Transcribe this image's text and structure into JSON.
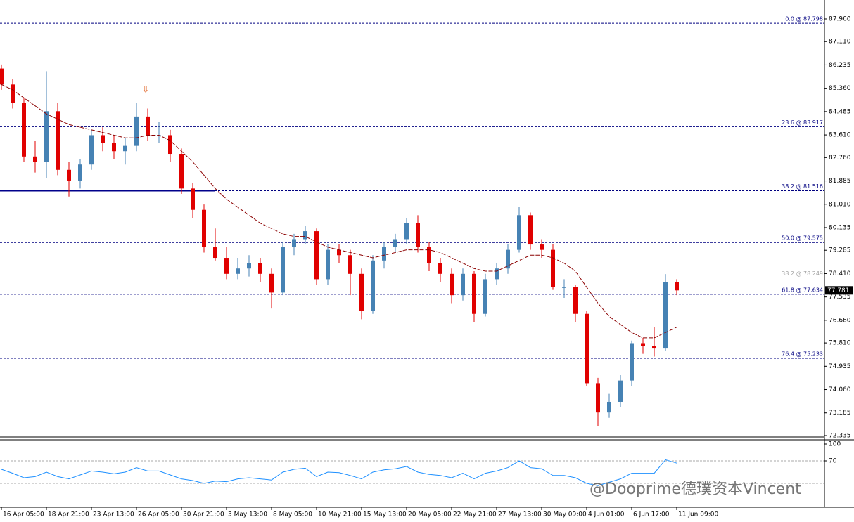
{
  "chart_data": {
    "type": "candlestick",
    "up_color": "#4682b4",
    "down_color": "#e00000",
    "ma_color": "#8b0000",
    "ylim": [
      72.282,
      88.671
    ],
    "yticks": [
      {
        "value": 87.96,
        "label": "87.960"
      },
      {
        "value": 87.11,
        "label": "87.110"
      },
      86.235,
      {
        "value": 85.36,
        "label": "85.360"
      },
      84.485,
      {
        "value": 83.61,
        "label": "83.610"
      },
      {
        "value": 82.76,
        "label": "82.760"
      },
      81.885,
      {
        "value": 81.01,
        "label": "81.010"
      },
      80.135,
      79.285,
      {
        "value": 78.41,
        "label": "78.410"
      },
      77.535,
      {
        "value": 76.66,
        "label": "76.660"
      },
      {
        "value": 75.81,
        "label": "75.810"
      },
      74.935,
      {
        "value": 74.06,
        "label": "74.060"
      },
      73.185,
      72.335
    ],
    "categories": [
      "16 Apr 05:00",
      null,
      null,
      null,
      "18 Apr 21:00",
      null,
      null,
      null,
      "23 Apr 13:00",
      null,
      null,
      null,
      "26 Apr 05:00",
      null,
      null,
      null,
      "30 Apr 21:00",
      null,
      null,
      null,
      "3 May 13:00",
      null,
      null,
      null,
      "8 May 05:00",
      null,
      null,
      null,
      "10 May 21:00",
      null,
      null,
      null,
      "15 May 13:00",
      null,
      null,
      null,
      "20 May 05:00",
      null,
      null,
      null,
      "22 May 21:00",
      null,
      null,
      null,
      "27 May 13:00",
      null,
      null,
      null,
      "30 May 09:00",
      null,
      null,
      null,
      "4 Jun 01:00",
      null,
      null,
      null,
      "6 Jun 17:00",
      null,
      null,
      null,
      "11 Jun 09:00"
    ],
    "candles": [
      [
        86.1,
        86.25,
        85.3,
        85.5
      ],
      [
        85.5,
        85.7,
        84.6,
        84.8
      ],
      [
        84.8,
        85.0,
        82.6,
        82.8
      ],
      [
        82.8,
        83.4,
        82.2,
        82.6
      ],
      [
        82.6,
        86.0,
        82.0,
        84.5
      ],
      [
        84.5,
        84.8,
        82.1,
        82.3
      ],
      [
        82.3,
        82.6,
        81.3,
        81.9
      ],
      [
        81.9,
        82.7,
        81.6,
        82.5
      ],
      [
        82.5,
        83.8,
        82.3,
        83.6
      ],
      [
        83.6,
        83.9,
        83.0,
        83.3
      ],
      [
        83.3,
        83.6,
        82.7,
        83.0
      ],
      [
        83.0,
        83.5,
        82.5,
        83.2
      ],
      [
        83.2,
        84.8,
        83.0,
        84.3
      ],
      [
        84.3,
        84.6,
        83.4,
        83.6
      ],
      [
        83.6,
        84.1,
        83.3,
        83.6
      ],
      [
        83.6,
        83.8,
        82.6,
        82.9
      ],
      [
        82.9,
        83.1,
        81.4,
        81.6
      ],
      [
        81.6,
        81.8,
        80.5,
        80.8
      ],
      [
        80.8,
        81.0,
        79.2,
        79.4
      ],
      [
        79.4,
        80.1,
        78.9,
        79.0
      ],
      [
        79.0,
        79.4,
        78.2,
        78.4
      ],
      [
        78.4,
        79.0,
        78.2,
        78.6
      ],
      [
        78.6,
        79.1,
        78.3,
        78.8
      ],
      [
        78.8,
        79.0,
        78.1,
        78.4
      ],
      [
        78.4,
        78.6,
        77.1,
        77.7
      ],
      [
        77.7,
        79.6,
        77.6,
        79.4
      ],
      [
        79.4,
        79.9,
        79.1,
        79.7
      ],
      [
        79.7,
        80.2,
        79.5,
        80.0
      ],
      [
        80.0,
        80.1,
        78.0,
        78.2
      ],
      [
        78.2,
        79.5,
        78.0,
        79.3
      ],
      [
        79.3,
        79.5,
        78.8,
        79.1
      ],
      [
        79.1,
        79.3,
        77.6,
        78.4
      ],
      [
        78.4,
        78.6,
        76.7,
        77.0
      ],
      [
        77.0,
        79.1,
        76.9,
        78.9
      ],
      [
        78.9,
        79.6,
        78.6,
        79.4
      ],
      [
        79.4,
        79.9,
        79.2,
        79.7
      ],
      [
        79.7,
        80.5,
        79.5,
        80.3
      ],
      [
        80.3,
        80.6,
        79.2,
        79.4
      ],
      [
        79.4,
        79.6,
        78.5,
        78.8
      ],
      [
        78.8,
        79.0,
        78.1,
        78.4
      ],
      [
        78.4,
        78.6,
        77.3,
        77.6
      ],
      [
        77.6,
        78.6,
        77.4,
        78.4
      ],
      [
        78.4,
        78.5,
        76.6,
        76.9
      ],
      [
        76.9,
        78.4,
        76.8,
        78.2
      ],
      [
        78.2,
        78.8,
        78.0,
        78.6
      ],
      [
        78.6,
        79.5,
        78.4,
        79.3
      ],
      [
        79.3,
        80.9,
        79.2,
        80.6
      ],
      [
        80.6,
        80.7,
        79.3,
        79.5
      ],
      [
        79.5,
        79.7,
        79.0,
        79.3
      ],
      [
        79.3,
        79.5,
        77.8,
        77.9
      ],
      [
        77.9,
        78.2,
        77.5,
        77.9
      ],
      [
        77.9,
        78.0,
        76.6,
        76.9
      ],
      [
        76.9,
        77.0,
        74.2,
        74.3
      ],
      [
        74.3,
        74.5,
        72.68,
        73.2
      ],
      [
        73.2,
        73.9,
        73.0,
        73.6
      ],
      [
        73.6,
        74.6,
        73.4,
        74.4
      ],
      [
        74.4,
        75.9,
        74.2,
        75.8
      ],
      [
        75.8,
        76.0,
        75.4,
        75.7
      ],
      [
        75.7,
        76.4,
        75.3,
        75.6
      ],
      [
        75.6,
        78.39,
        75.5,
        78.1
      ],
      [
        78.1,
        78.2,
        77.6,
        77.781
      ]
    ],
    "ma": [
      85.5,
      85.3,
      85.0,
      84.7,
      84.4,
      84.2,
      84.0,
      83.9,
      83.8,
      83.7,
      83.6,
      83.5,
      83.5,
      83.6,
      83.6,
      83.4,
      83.0,
      82.6,
      82.1,
      81.6,
      81.2,
      80.9,
      80.6,
      80.3,
      80.1,
      79.9,
      79.8,
      79.8,
      79.6,
      79.4,
      79.3,
      79.2,
      79.1,
      79.0,
      79.1,
      79.2,
      79.3,
      79.3,
      79.3,
      79.2,
      79.0,
      78.8,
      78.6,
      78.5,
      78.5,
      78.7,
      78.9,
      79.1,
      79.1,
      79.0,
      78.8,
      78.5,
      77.9,
      77.3,
      76.8,
      76.5,
      76.2,
      76.0,
      76.0,
      76.2,
      76.4
    ],
    "levels": [
      {
        "label": "0.0 @ 87.798",
        "value": 87.798,
        "color": "#000080"
      },
      {
        "label": "23.6 @ 83.917",
        "value": 83.917,
        "color": "#000080"
      },
      {
        "label": "38.2 @ 81.516",
        "value": 81.516,
        "color": "#000080"
      },
      {
        "label": "50.0 @ 79.575",
        "value": 79.575,
        "color": "#000080"
      },
      {
        "label": "38.2 @ 78.249",
        "value": 78.249,
        "color": "#a0a0a0"
      },
      {
        "label": "61.8 @ 77.634",
        "value": 77.634,
        "color": "#000080"
      },
      {
        "label": "76.4 @ 75.233",
        "value": 75.233,
        "color": "#000080"
      }
    ],
    "support": {
      "value": 81.516,
      "color": "#00008b"
    },
    "rsi": {
      "color": "#1e90ff",
      "ylim": [
        0,
        100
      ],
      "yticks": [
        100,
        70
      ],
      "levels": [
        70,
        30
      ],
      "values": [
        55,
        48,
        40,
        42,
        50,
        42,
        38,
        45,
        52,
        50,
        47,
        50,
        58,
        52,
        52,
        45,
        38,
        35,
        30,
        34,
        33,
        38,
        40,
        38,
        36,
        50,
        55,
        57,
        42,
        50,
        49,
        44,
        38,
        50,
        54,
        56,
        60,
        50,
        46,
        44,
        40,
        48,
        38,
        48,
        52,
        58,
        70,
        58,
        56,
        44,
        44,
        40,
        30,
        26,
        32,
        38,
        48,
        48,
        48,
        72,
        66
      ]
    },
    "watermark": "@Dooprime德璞资本Vincent"
  }
}
